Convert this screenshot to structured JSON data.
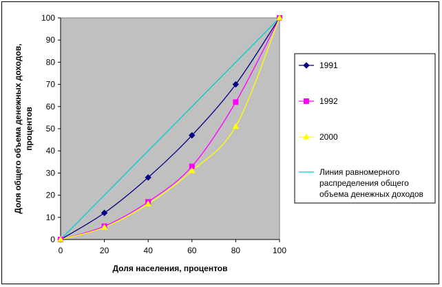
{
  "chart_data": {
    "type": "line",
    "xlabel": "Доля населения, процентов",
    "ylabel_lines": [
      "Доля общего объема денежных доходов,",
      "процентов"
    ],
    "x": [
      0,
      20,
      40,
      60,
      80,
      100
    ],
    "xlim": [
      0,
      100
    ],
    "ylim": [
      0,
      100
    ],
    "x_ticks": [
      "0",
      "20",
      "40",
      "60",
      "80",
      "100"
    ],
    "y_ticks": [
      "0",
      "10",
      "20",
      "30",
      "40",
      "50",
      "60",
      "70",
      "80",
      "90",
      "100"
    ],
    "plot_background": "#C0C0C0",
    "grid": false,
    "legend_position": "right",
    "series": [
      {
        "name": "1991",
        "values": [
          0,
          12,
          28,
          47,
          70,
          100
        ],
        "color": "#000080",
        "marker": "diamond"
      },
      {
        "name": "1992",
        "values": [
          0,
          6,
          17,
          33,
          62,
          100
        ],
        "color": "#FF00FF",
        "marker": "square"
      },
      {
        "name": "2000",
        "values": [
          0,
          5.5,
          16,
          31,
          51,
          100
        ],
        "color": "#FFFF00",
        "marker": "triangle"
      },
      {
        "name_lines": [
          "Линия равномерного",
          "распределения общего",
          "объема денежных доходов"
        ],
        "values": [
          0,
          20,
          40,
          60,
          80,
          100
        ],
        "color": "#00CCCC",
        "marker": "none"
      }
    ]
  }
}
